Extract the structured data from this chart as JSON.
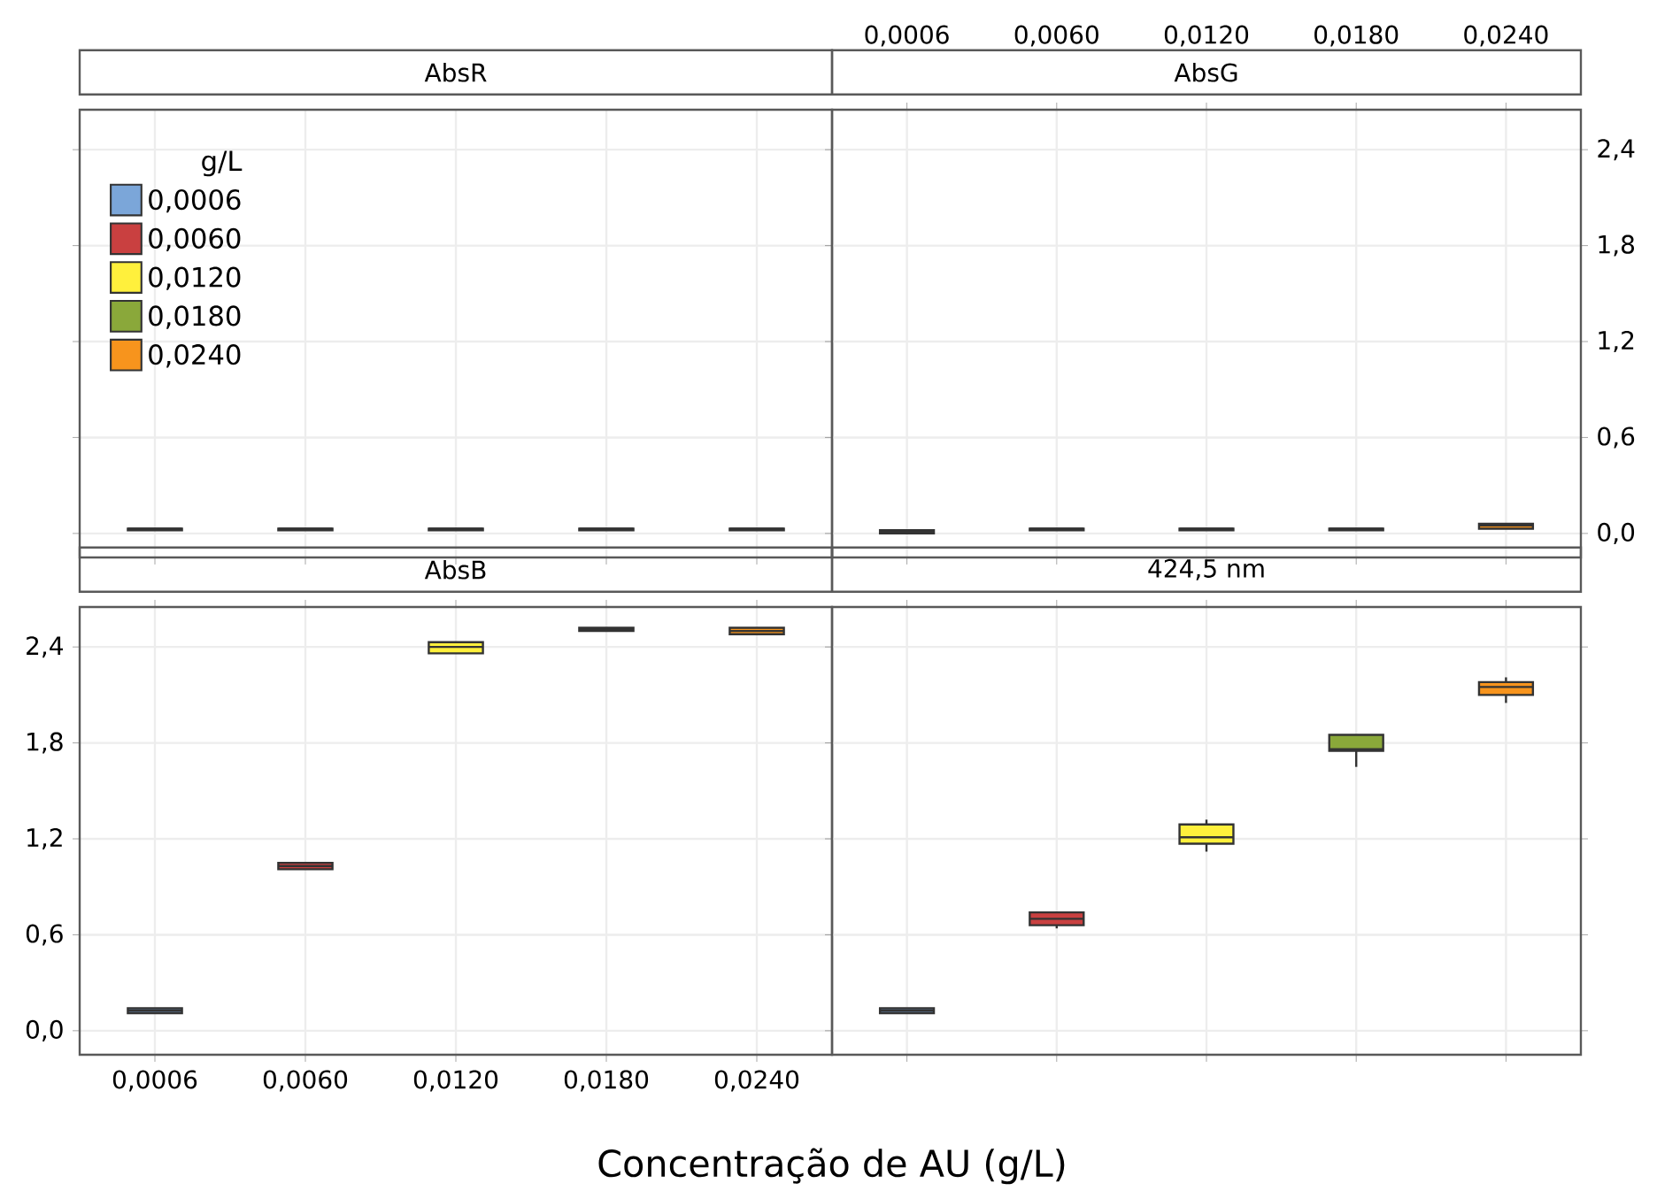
{
  "chart_data": [
    {
      "type": "box",
      "title": "AbsR",
      "categories": [
        "0,0006",
        "0,0060",
        "0,0120",
        "0,0180",
        "0,0240"
      ],
      "series": [
        {
          "name": "0,0006",
          "color": "#7ba6d9",
          "boxes": [
            {
              "low": 0.02,
              "q1": 0.02,
              "median": 0.03,
              "q3": 0.03,
              "high": 0.03
            },
            null,
            null,
            null,
            null
          ]
        },
        {
          "name": "0,0060",
          "color": "#c94040",
          "boxes": [
            null,
            {
              "low": 0.02,
              "q1": 0.02,
              "median": 0.03,
              "q3": 0.03,
              "high": 0.03
            },
            null,
            null,
            null
          ]
        },
        {
          "name": "0,0120",
          "color": "#fff03c",
          "boxes": [
            null,
            null,
            {
              "low": 0.02,
              "q1": 0.02,
              "median": 0.03,
              "q3": 0.03,
              "high": 0.03
            },
            null,
            null
          ]
        },
        {
          "name": "0,0180",
          "color": "#8aa83a",
          "boxes": [
            null,
            null,
            null,
            {
              "low": 0.02,
              "q1": 0.02,
              "median": 0.03,
              "q3": 0.03,
              "high": 0.03
            },
            null
          ]
        },
        {
          "name": "0,0240",
          "color": "#f7941d",
          "boxes": [
            null,
            null,
            null,
            null,
            {
              "low": 0.02,
              "q1": 0.02,
              "median": 0.03,
              "q3": 0.03,
              "high": 0.03
            }
          ]
        }
      ],
      "ylim": [
        -0.15,
        2.65
      ],
      "yticks": [
        {
          "value": 0,
          "label": null
        },
        {
          "value": 0.6,
          "label": null
        },
        {
          "value": 1.2,
          "label": null
        },
        {
          "value": 1.8,
          "label": null
        },
        {
          "value": 2.4,
          "label": null
        }
      ],
      "grid": true,
      "legend": "top left",
      "legend_title": "g/L",
      "tick_labels": false
    },
    {
      "type": "box",
      "title": "AbsG",
      "categories": [
        "0,0006",
        "0,0060",
        "0,0120",
        "0,0180",
        "0,0240"
      ],
      "series": [
        {
          "color": "#7ba6d9",
          "boxes": [
            {
              "low": 0.0,
              "q1": 0.0,
              "median": 0.01,
              "q3": 0.02,
              "high": 0.02
            },
            null,
            null,
            null,
            null
          ]
        },
        {
          "color": "#c94040",
          "boxes": [
            null,
            {
              "low": 0.02,
              "q1": 0.02,
              "median": 0.03,
              "q3": 0.03,
              "high": 0.03
            },
            null,
            null,
            null
          ]
        },
        {
          "color": "#fff03c",
          "boxes": [
            null,
            null,
            {
              "low": 0.02,
              "q1": 0.02,
              "median": 0.03,
              "q3": 0.03,
              "high": 0.03
            },
            null,
            null
          ]
        },
        {
          "color": "#8aa83a",
          "boxes": [
            null,
            null,
            null,
            {
              "low": 0.02,
              "q1": 0.02,
              "median": 0.03,
              "q3": 0.03,
              "high": 0.03
            },
            null
          ]
        },
        {
          "color": "#f7941d",
          "boxes": [
            null,
            null,
            null,
            null,
            {
              "low": 0.03,
              "q1": 0.03,
              "median": 0.05,
              "q3": 0.06,
              "high": 0.06
            }
          ]
        }
      ],
      "ylim": [
        -0.15,
        2.65
      ],
      "yticks": [
        {
          "value": 0,
          "label": "0,0"
        },
        {
          "value": 0.6,
          "label": "0,6"
        },
        {
          "value": 1.2,
          "label": "1,2"
        },
        {
          "value": 1.8,
          "label": "1,8"
        },
        {
          "value": 2.4,
          "label": "2,4"
        }
      ],
      "grid": true
    },
    {
      "type": "box",
      "title": "AbsB",
      "xlabel": "Concentração de AU (g/L)",
      "categories": [
        "0,0006",
        "0,0060",
        "0,0120",
        "0,0180",
        "0,0240"
      ],
      "series": [
        {
          "color": "#7ba6d9",
          "boxes": [
            {
              "low": 0.11,
              "q1": 0.11,
              "median": 0.125,
              "q3": 0.14,
              "high": 0.14
            },
            null,
            null,
            null,
            null
          ]
        },
        {
          "color": "#c94040",
          "boxes": [
            null,
            {
              "low": 1.01,
              "q1": 1.01,
              "median": 1.03,
              "q3": 1.05,
              "high": 1.05
            },
            null,
            null,
            null
          ]
        },
        {
          "color": "#fff03c",
          "boxes": [
            null,
            null,
            {
              "low": 2.36,
              "q1": 2.36,
              "median": 2.4,
              "q3": 2.43,
              "high": 2.43
            },
            null,
            null
          ]
        },
        {
          "color": "#8aa83a",
          "boxes": [
            null,
            null,
            null,
            {
              "low": 2.5,
              "q1": 2.5,
              "median": 2.51,
              "q3": 2.52,
              "high": 2.52
            },
            null
          ]
        },
        {
          "color": "#f7941d",
          "boxes": [
            null,
            null,
            null,
            null,
            {
              "low": 2.48,
              "q1": 2.48,
              "median": 2.5,
              "q3": 2.52,
              "high": 2.52
            }
          ]
        }
      ],
      "ylim": [
        -0.15,
        2.65
      ],
      "yticks": [
        {
          "value": 0,
          "label": "0,0"
        },
        {
          "value": 0.6,
          "label": "0,6"
        },
        {
          "value": 1.2,
          "label": "1,2"
        },
        {
          "value": 1.8,
          "label": "1,8"
        },
        {
          "value": 2.4,
          "label": "2,4"
        }
      ],
      "grid": true
    },
    {
      "type": "box",
      "title": "424,5 nm",
      "categories": [
        "0,0006",
        "0,0060",
        "0,0120",
        "0,0180",
        "0,0240"
      ],
      "series": [
        {
          "color": "#7ba6d9",
          "boxes": [
            {
              "low": 0.11,
              "q1": 0.11,
              "median": 0.125,
              "q3": 0.14,
              "high": 0.14
            },
            null,
            null,
            null,
            null
          ]
        },
        {
          "color": "#c94040",
          "boxes": [
            null,
            {
              "low": 0.64,
              "q1": 0.66,
              "median": 0.7,
              "q3": 0.74,
              "high": 0.74
            },
            null,
            null,
            null
          ]
        },
        {
          "color": "#fff03c",
          "boxes": [
            null,
            null,
            {
              "low": 1.12,
              "q1": 1.17,
              "median": 1.21,
              "q3": 1.29,
              "high": 1.32
            },
            null,
            null
          ]
        },
        {
          "color": "#8aa83a",
          "boxes": [
            null,
            null,
            null,
            {
              "low": 1.65,
              "q1": 1.75,
              "median": 1.76,
              "q3": 1.85,
              "high": 1.85
            },
            null
          ]
        },
        {
          "color": "#f7941d",
          "boxes": [
            null,
            null,
            null,
            null,
            {
              "low": 2.05,
              "q1": 2.1,
              "median": 2.15,
              "q3": 2.18,
              "high": 2.21
            }
          ]
        }
      ],
      "ylim": [
        -0.15,
        2.65
      ],
      "yticks": [
        {
          "value": 0,
          "label": null
        },
        {
          "value": 0.6,
          "label": null
        },
        {
          "value": 1.2,
          "label": null
        },
        {
          "value": 1.8,
          "label": null
        },
        {
          "value": 2.4,
          "label": null
        }
      ],
      "grid": true,
      "tick_labels": false
    }
  ]
}
